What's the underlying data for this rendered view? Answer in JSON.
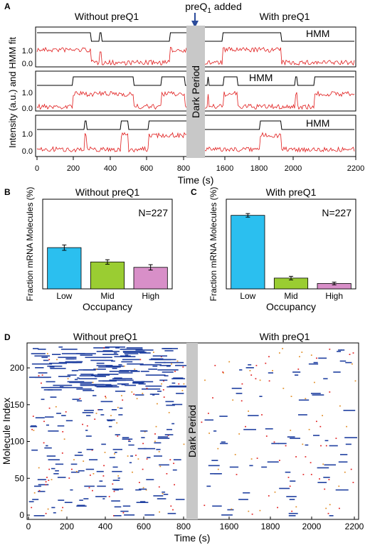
{
  "panel_a": {
    "label": "A",
    "left_title": "Without preQ1",
    "right_title": "With preQ1",
    "preq_main": "preQ",
    "preq_sub": "1",
    "preq_suffix": " added",
    "hmm_label": "HMM",
    "dark_period": "Dark Period",
    "ylabel": "Intensity (a.u.) and HMM fit",
    "xlabel": "Time (s)",
    "x_ticks": [
      "0",
      "200",
      "400",
      "600",
      "800",
      "1600",
      "1800",
      "2000",
      "2200"
    ],
    "y_ticks": [
      "1.0",
      "0.0"
    ],
    "arrow_color": "#2b4b9b",
    "trace_color": "#e01b1b",
    "dark_color": "#c8c8c8"
  },
  "chart_data": [
    {
      "type": "bar",
      "panel": "B",
      "title": "Without preQ1",
      "annotation": "N=227",
      "categories": [
        "Low",
        "Mid",
        "High"
      ],
      "values": [
        46,
        30,
        24
      ],
      "errors": [
        3,
        2.5,
        3
      ],
      "colors": [
        "#2bbfef",
        "#9acd32",
        "#d88fc8"
      ],
      "xlabel": "Occupancy",
      "ylabel": "Fraction mRNA Molecules (%)",
      "ylim": [
        0,
        100
      ]
    },
    {
      "type": "bar",
      "panel": "C",
      "title": "With preQ1",
      "annotation": "N=227",
      "categories": [
        "Low",
        "Mid",
        "High"
      ],
      "values": [
        82,
        12,
        6
      ],
      "errors": [
        2,
        2,
        1.5
      ],
      "colors": [
        "#2bbfef",
        "#9acd32",
        "#d88fc8"
      ],
      "xlabel": "Occupancy",
      "ylabel": "Fraction mRNA Molecules (%)",
      "ylim": [
        0,
        100
      ]
    }
  ],
  "panel_d": {
    "label": "D",
    "left_title": "Without preQ1",
    "right_title": "With preQ1",
    "dark_period": "Dark Period",
    "ylabel": "Molecule Index",
    "xlabel": "Time (s)",
    "x_ticks": [
      "0",
      "200",
      "400",
      "600",
      "800",
      "1600",
      "1800",
      "2000",
      "2200"
    ],
    "y_ticks": [
      "0",
      "50",
      "100",
      "150",
      "200"
    ],
    "colors": [
      "#1f3fa0",
      "#e01b1b",
      "#e08a20"
    ]
  }
}
